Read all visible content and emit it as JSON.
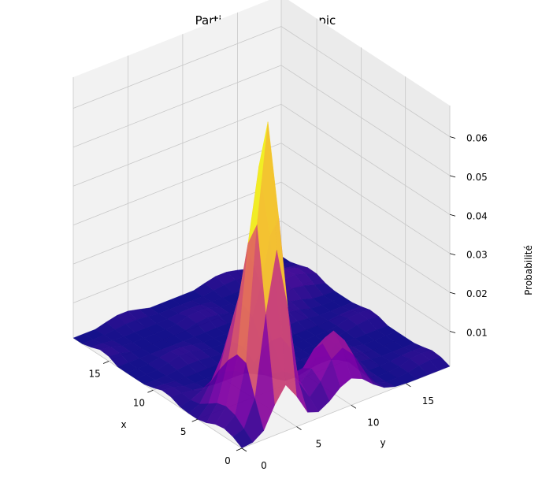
{
  "chart_data": {
    "type": "surface3d",
    "title": "Particule au premier pic",
    "xlabel": "x",
    "ylabel": "y",
    "zlabel": "Probabilité",
    "x_ticks": [
      "0",
      "5",
      "10",
      "15"
    ],
    "y_ticks": [
      "0",
      "5",
      "10",
      "15"
    ],
    "z_ticks": [
      "0.01",
      "0.02",
      "0.03",
      "0.04",
      "0.05",
      "0.06"
    ],
    "xlim": [
      0,
      19
    ],
    "ylim": [
      0,
      19
    ],
    "zlim": [
      0.001,
      0.068
    ],
    "colormap": "plasma",
    "grid": true,
    "surface": {
      "grid_size": 20,
      "peaks": [
        {
          "x": 2,
          "y": 4,
          "z": 0.066,
          "label": "premier pic"
        },
        {
          "x": 4,
          "y": 4,
          "z": 0.029
        },
        {
          "x": 2,
          "y": 10,
          "z": 0.016
        },
        {
          "x": 15,
          "y": 16,
          "z": 0.004
        }
      ],
      "baseline": 0.001
    }
  },
  "colors": {
    "pane_back": "#f2f2f2",
    "pane_side": "#ebebeb",
    "pane_floor": "#f2f2f2",
    "grid": "#c8c8c8",
    "axis": "#000000"
  }
}
